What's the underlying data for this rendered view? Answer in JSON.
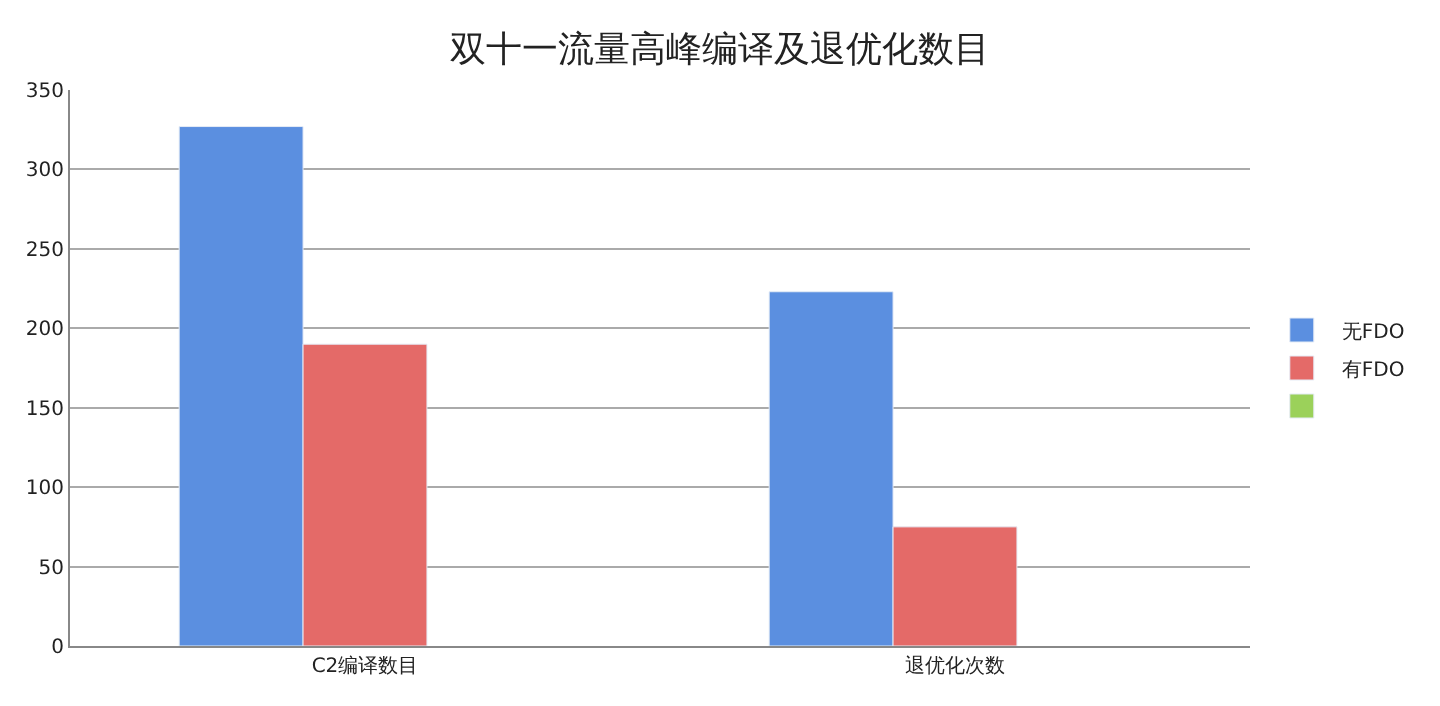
{
  "chart_data": {
    "type": "bar",
    "title": "双十一流量高峰编译及退优化数目",
    "categories": [
      "C2编译数目",
      "退优化次数"
    ],
    "series": [
      {
        "name": "无FDO",
        "color": "#5b8fe0",
        "values": [
          327,
          223
        ]
      },
      {
        "name": "有FDO",
        "color": "#e46a68",
        "values": [
          190,
          75
        ]
      },
      {
        "color": "#9bd15a",
        "values": [
          null,
          null
        ]
      }
    ],
    "ylim": [
      0,
      350
    ],
    "yticks": [
      0,
      50,
      100,
      150,
      200,
      250,
      300,
      350
    ],
    "grid": "y",
    "legend": "right"
  }
}
